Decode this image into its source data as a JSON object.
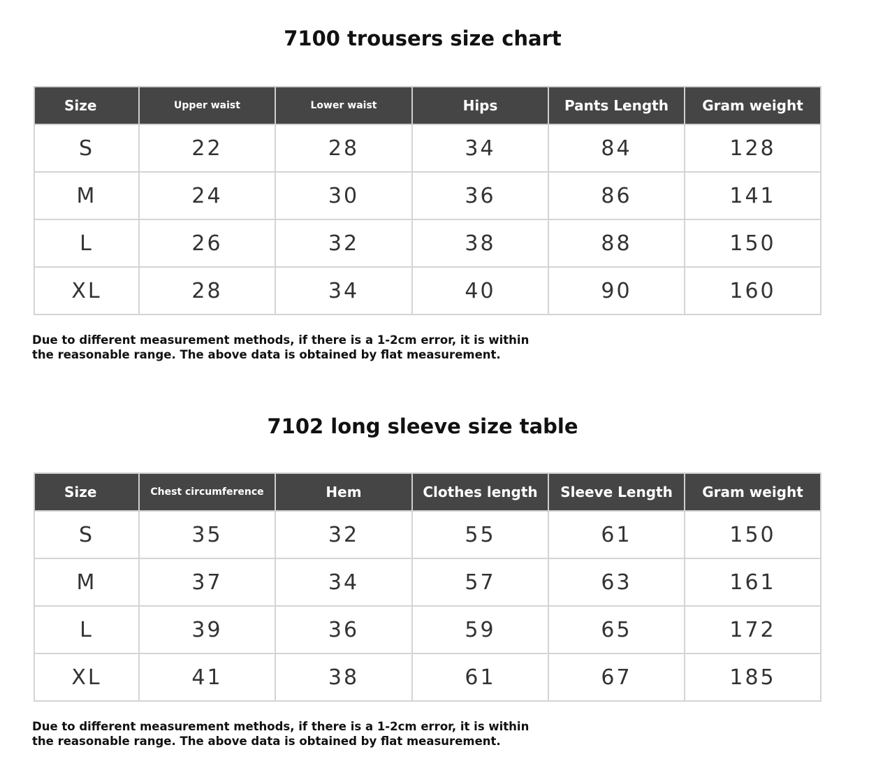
{
  "tables": [
    {
      "title": "7100 trousers size chart",
      "headers": [
        "Size",
        "Upper waist",
        "Lower waist",
        "Hips",
        "Pants Length",
        "Gram weight"
      ],
      "rows": [
        [
          "S",
          "22",
          "28",
          "34",
          "84",
          "128"
        ],
        [
          "M",
          "24",
          "30",
          "36",
          "86",
          "141"
        ],
        [
          "L",
          "26",
          "32",
          "38",
          "88",
          "150"
        ],
        [
          "XL",
          "28",
          "34",
          "40",
          "90",
          "160"
        ]
      ],
      "note_line1": "Due to different measurement methods, if there is a 1-2cm error, it is within",
      "note_line2": "the reasonable range. The above data is obtained by flat measurement."
    },
    {
      "title": "7102 long sleeve size table",
      "headers": [
        "Size",
        "Chest circumference",
        "Hem",
        "Clothes length",
        "Sleeve Length",
        "Gram weight"
      ],
      "rows": [
        [
          "S",
          "35",
          "32",
          "55",
          "61",
          "150"
        ],
        [
          "M",
          "37",
          "34",
          "57",
          "63",
          "161"
        ],
        [
          "L",
          "39",
          "36",
          "59",
          "65",
          "172"
        ],
        [
          "XL",
          "41",
          "38",
          "61",
          "67",
          "185"
        ]
      ],
      "note_line1": "Due to different measurement methods, if there is a 1-2cm error, it is within",
      "note_line2": "the reasonable range. The above data is obtained by flat measurement."
    }
  ],
  "colors": {
    "header_bg": "#454545",
    "border": "#d4d4d4"
  }
}
